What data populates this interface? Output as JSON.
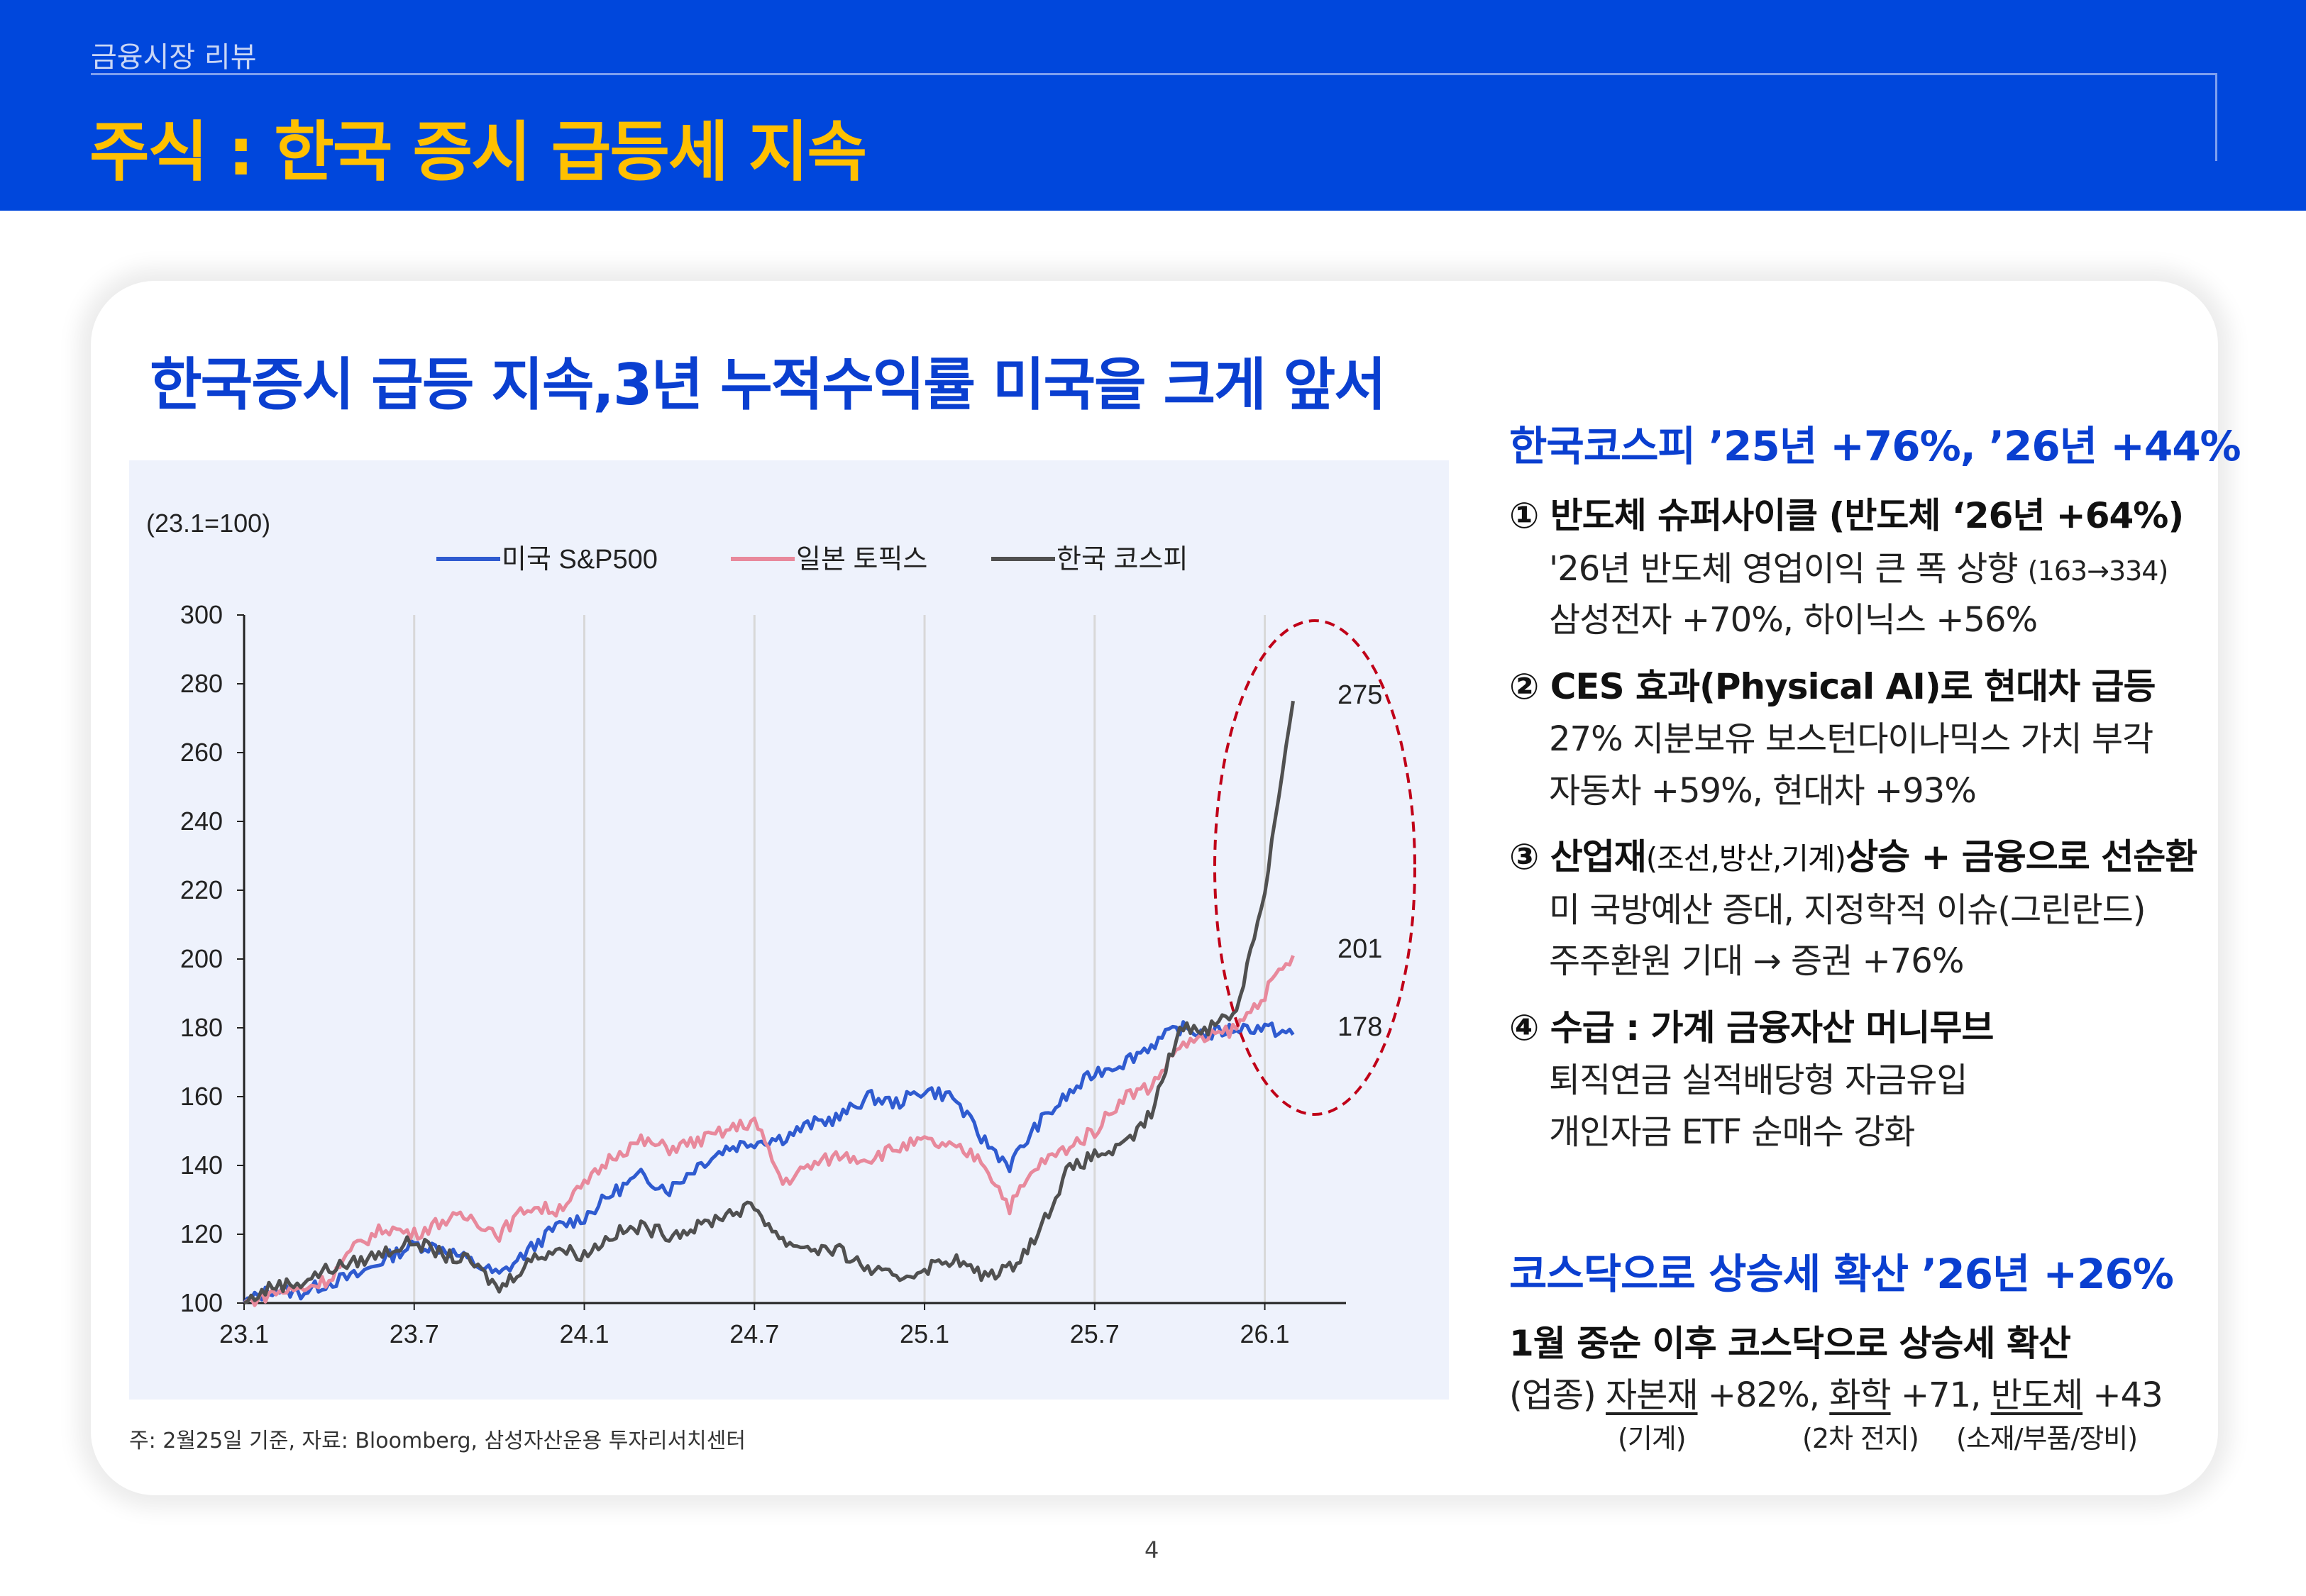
{
  "header": {
    "section": "금융시장 리뷰",
    "title": "주식 : 한국 증시 급등세 지속",
    "bg_color": "#0047dc",
    "title_color": "#ffc000"
  },
  "chart_heading": "한국증시 급등 지속,3년 누적수익률 미국을 크게 앞서",
  "chart_data": {
    "type": "line",
    "unit_note": "(23.1=100)",
    "ylim": [
      100,
      300
    ],
    "yticks": [
      "100",
      "120",
      "140",
      "160",
      "180",
      "200",
      "220",
      "240",
      "260",
      "280",
      "300"
    ],
    "xticks": [
      "23.1",
      "23.7",
      "24.1",
      "24.7",
      "25.1",
      "25.7",
      "26.1"
    ],
    "x": [
      "23.1",
      "23.2",
      "23.3",
      "23.4",
      "23.5",
      "23.6",
      "23.7",
      "23.8",
      "23.9",
      "23.10",
      "23.11",
      "23.12",
      "24.1",
      "24.2",
      "24.3",
      "24.4",
      "24.5",
      "24.6",
      "24.7",
      "24.8",
      "24.9",
      "24.10",
      "24.11",
      "24.12",
      "25.1",
      "25.2",
      "25.3",
      "25.4",
      "25.5",
      "25.6",
      "25.7",
      "25.8",
      "25.9",
      "25.10",
      "25.11",
      "25.12",
      "26.1",
      "26.2"
    ],
    "series": [
      {
        "name": "미국 S&P500",
        "color": "#2f5bd0",
        "end_label": "178",
        "values": [
          100,
          104,
          103,
          106,
          108,
          113,
          117,
          116,
          112,
          108,
          115,
          122,
          125,
          132,
          137,
          133,
          140,
          145,
          147,
          148,
          152,
          154,
          160,
          158,
          162,
          160,
          148,
          140,
          152,
          160,
          167,
          170,
          175,
          180,
          178,
          180,
          180,
          178
        ]
      },
      {
        "name": "일본 토픽스",
        "color": "#e8899c",
        "end_label": "201",
        "values": [
          100,
          103,
          104,
          107,
          117,
          122,
          120,
          124,
          125,
          120,
          128,
          127,
          134,
          143,
          147,
          145,
          147,
          150,
          153,
          135,
          140,
          143,
          142,
          145,
          147,
          145,
          142,
          128,
          140,
          145,
          150,
          160,
          163,
          175,
          177,
          180,
          190,
          201
        ]
      },
      {
        "name": "한국 코스피",
        "color": "#505050",
        "end_label": "275",
        "values": [
          100,
          105,
          106,
          110,
          112,
          115,
          118,
          114,
          112,
          104,
          112,
          116,
          114,
          120,
          122,
          120,
          122,
          126,
          128,
          118,
          116,
          115,
          110,
          107,
          110,
          113,
          108,
          110,
          120,
          138,
          143,
          145,
          155,
          180,
          180,
          185,
          220,
          275
        ]
      }
    ],
    "highlight": "dashed red ellipse around latest period",
    "grid": "vertical",
    "legend": "top"
  },
  "footnote": "주: 2월25일 기준, 자료: Bloomberg, 삼성자산운용 투자리서치센터",
  "right": {
    "heading1": "한국코스피 ’25년 +76%, ’26년 +44%",
    "items": [
      {
        "title": "① 반도체 슈퍼사이클  (반도체 ‘26년 +64%)",
        "lines": [
          "'26년 반도체 영업이익 큰 폭 상향",
          "(163→334)",
          "삼성전자 +70%, 하이닉스 +56%"
        ]
      },
      {
        "title": "② CES 효과(Physical AI)로 현대차 급등",
        "lines": [
          "27% 지분보유 보스턴다이나믹스 가치 부각",
          "자동차 +59%, 현대차 +93%"
        ]
      },
      {
        "title_a": "③ 산업재",
        "title_b": "(조선,방산,기계)",
        "title_c": "상승 + 금융으로 선순환",
        "lines": [
          "미 국방예산 증대, 지정학적 이슈(그린란드)",
          "주주환원 기대 → 증권 +76%"
        ]
      },
      {
        "title": "④ 수급 : 가계 금융자산 머니무브",
        "lines": [
          "퇴직연금 실적배당형 자금유입",
          "개인자금 ETF 순매수 강화"
        ]
      }
    ],
    "heading2": "코스닥으로 상승세 확산 ’26년 +26%",
    "kosdaq_line": "1월 중순 이후 코스닥으로 상승세 확산",
    "sector": {
      "prefix": "(업종)",
      "s1": "자본재",
      "v1": "+82%,",
      "s2": "화학",
      "v2": "+71,",
      "s3": "반도체",
      "v3": "+43",
      "n1": "(기계)",
      "n2": "(2차 전지)",
      "n3": "(소재/부품/장비)"
    }
  },
  "page_number": "4"
}
